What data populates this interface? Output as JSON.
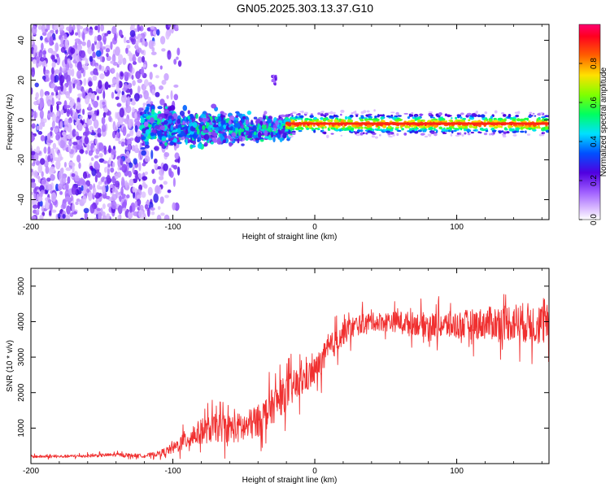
{
  "title": "GN05.2025.303.13.37.G10",
  "chart_data": [
    {
      "type": "heatmap",
      "xlabel": "Height of straight line (km)",
      "ylabel": "Frequency (Hz)",
      "xlim": [
        -200,
        165
      ],
      "ylim": [
        -50,
        48
      ],
      "xticks": [
        -200,
        -100,
        0,
        100
      ],
      "yticks": [
        -40,
        -20,
        0,
        20,
        40
      ],
      "grid": false,
      "colorbar": {
        "label": "Normalized spectral amplitude",
        "range": [
          0,
          1
        ],
        "ticks": [
          0.0,
          0.2,
          0.4,
          0.6,
          0.8
        ],
        "colors": [
          "#ffffff",
          "#b070ff",
          "#4000e0",
          "#0070ff",
          "#00ffff",
          "#00ff40",
          "#c0ff00",
          "#ffb000",
          "#ff2000",
          "#ff0060"
        ]
      },
      "regions": [
        {
          "x_range": [
            -200,
            -105
          ],
          "description_value": "noise",
          "freq_range": [
            -50,
            48
          ],
          "amplitude": 0.05
        },
        {
          "x_range": [
            -120,
            -20
          ],
          "freq_center": -4,
          "amplitude": 0.35
        },
        {
          "x_range": [
            -20,
            165
          ],
          "freq_center": -2,
          "amplitude": 0.95
        }
      ]
    },
    {
      "type": "line",
      "xlabel": "Height of straight line (km)",
      "ylabel": "SNR (10 * v/v)",
      "xlim": [
        -200,
        165
      ],
      "ylim": [
        0,
        5500
      ],
      "xticks": [
        -200,
        -100,
        0,
        100
      ],
      "yticks": [
        1000,
        2000,
        3000,
        4000,
        5000
      ],
      "grid": false,
      "series": [
        {
          "color": "#f03030",
          "x": [
            -200,
            -180,
            -160,
            -140,
            -120,
            -110,
            -100,
            -90,
            -80,
            -70,
            -60,
            -50,
            -40,
            -30,
            -20,
            -10,
            0,
            10,
            20,
            30,
            40,
            60,
            80,
            100,
            120,
            140,
            165
          ],
          "y": [
            200,
            200,
            220,
            250,
            220,
            280,
            420,
            700,
            900,
            1000,
            1000,
            1000,
            1200,
            1600,
            2000,
            2300,
            2600,
            3200,
            3700,
            3900,
            4000,
            4000,
            3900,
            3900,
            3950,
            4000,
            3900
          ],
          "spread": [
            80,
            80,
            90,
            100,
            100,
            150,
            300,
            600,
            700,
            800,
            800,
            900,
            900,
            1000,
            1000,
            900,
            800,
            800,
            700,
            600,
            500,
            600,
            700,
            800,
            900,
            1100,
            1200
          ]
        }
      ]
    }
  ]
}
